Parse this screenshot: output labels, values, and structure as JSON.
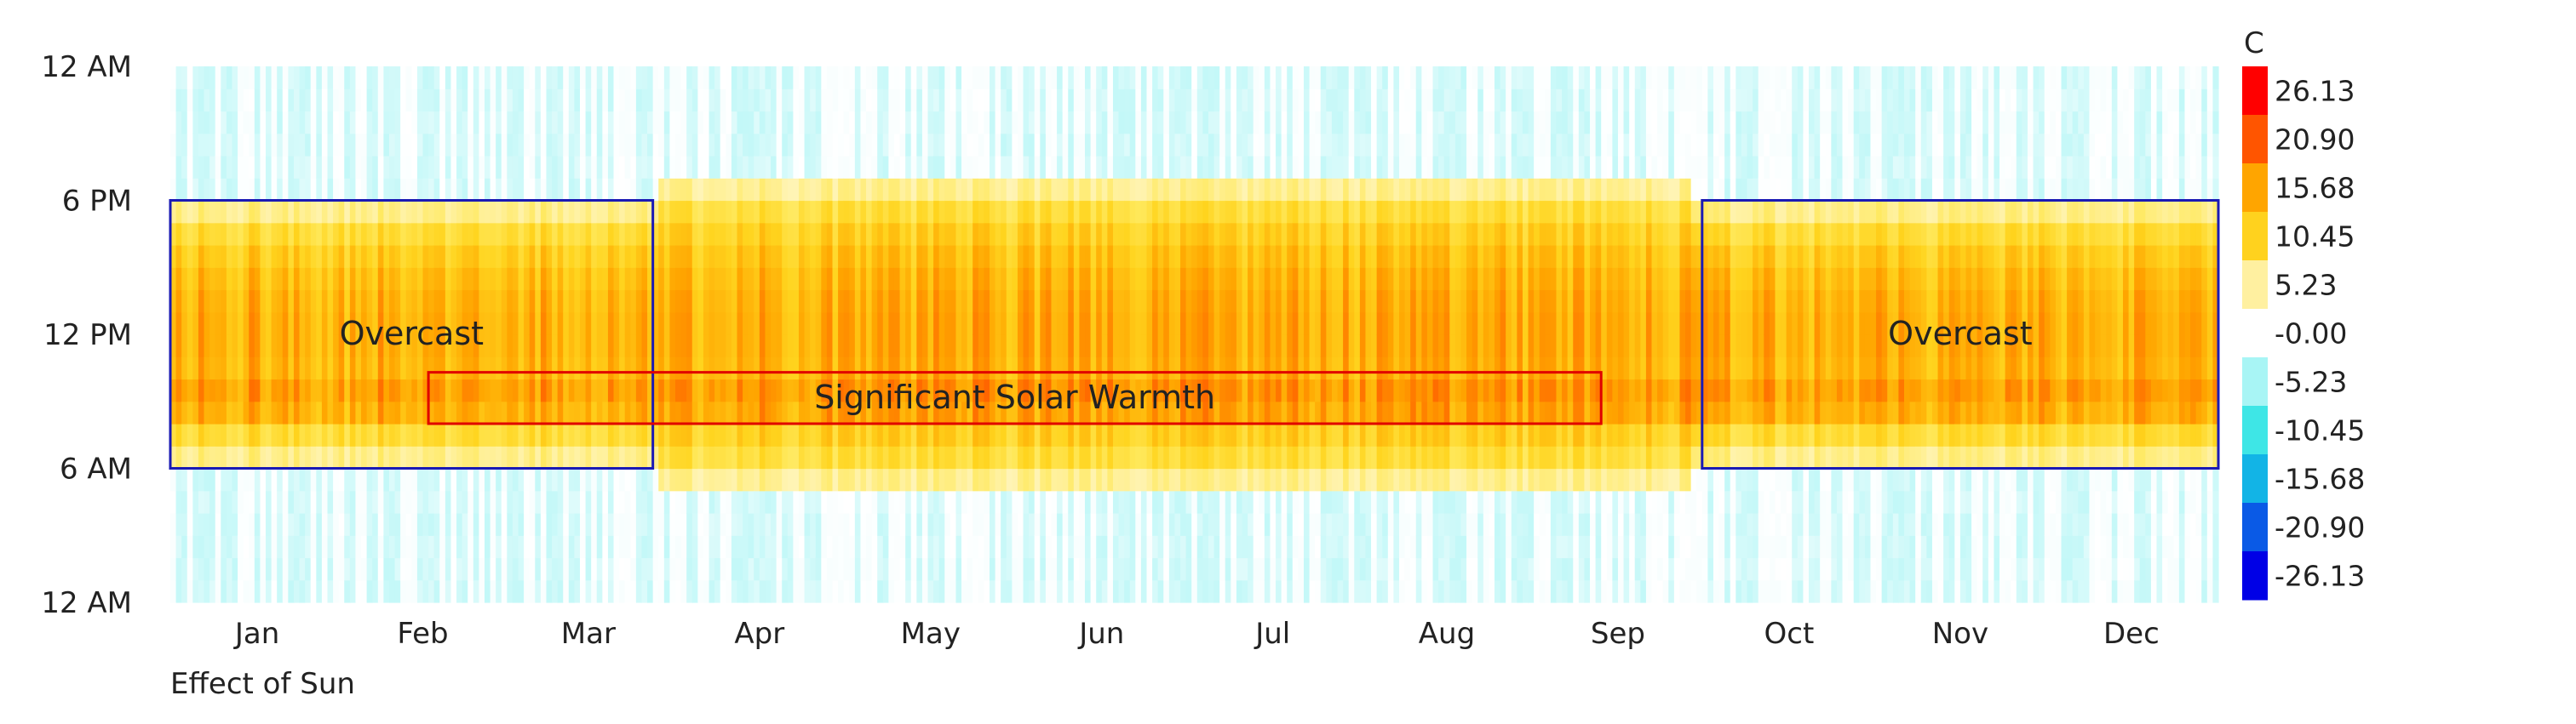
{
  "chart_data": {
    "type": "heatmap",
    "title": "",
    "xlabel": "Effect of Sun",
    "ylabel": "",
    "x_ticks": [
      "Jan",
      "Feb",
      "Mar",
      "Apr",
      "May",
      "Jun",
      "Jul",
      "Aug",
      "Sep",
      "Oct",
      "Nov",
      "Dec"
    ],
    "y_ticks": [
      "12 AM",
      "6 PM",
      "12 PM",
      "6 AM",
      "12 AM"
    ],
    "x_range_days": [
      1,
      365
    ],
    "y_range_hours": [
      0,
      24
    ],
    "colorbar": {
      "title": "C",
      "labels": [
        "26.13",
        "20.90",
        "15.68",
        "10.45",
        "5.23",
        "-0.00",
        "-5.23",
        "-10.45",
        "-15.68",
        "-20.90",
        "-26.13"
      ],
      "colors": [
        "#ff0000",
        "#ff5500",
        "#ffa500",
        "#ffd21e",
        "#fff0a0",
        "#ffffff",
        "#a8f5f5",
        "#3ee6e6",
        "#12b4e6",
        "#0a5ae6",
        "#0000e6"
      ]
    },
    "summary": {
      "daytime_hours": [
        6,
        18
      ],
      "summer_daytime_hours": [
        5,
        19
      ],
      "peak_value_c": 15,
      "night_value_c": -2
    },
    "annotations": [
      {
        "label": "Overcast",
        "color": "#1a1ab4",
        "box_day_range": [
          1,
          86
        ],
        "box_hour_range": [
          6,
          18
        ]
      },
      {
        "label": "Significant Solar Warmth",
        "color": "#e00000",
        "box_day_range": [
          47,
          255
        ],
        "box_hour_range": [
          8,
          10.3
        ]
      },
      {
        "label": "Overcast",
        "color": "#1a1ab4",
        "box_day_range": [
          274,
          365
        ],
        "box_hour_range": [
          6,
          18
        ]
      }
    ]
  }
}
